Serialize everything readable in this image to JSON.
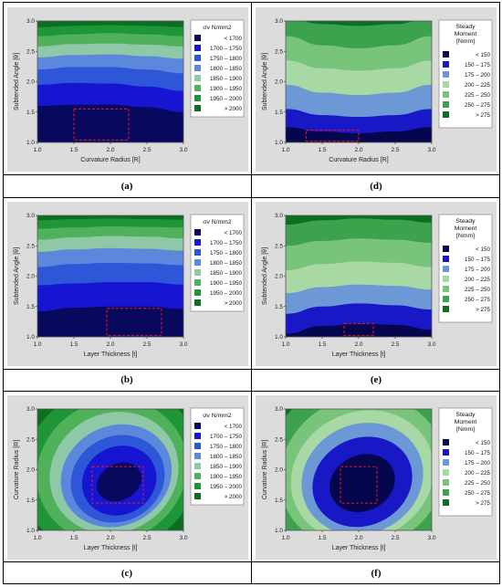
{
  "colors": {
    "stress": [
      "#08085e",
      "#1515d2",
      "#2e56d8",
      "#5b88dc",
      "#8fc8a6",
      "#4fb25a",
      "#1e9638",
      "#0b6e20"
    ],
    "moment": [
      "#06064e",
      "#1818c6",
      "#6c98d6",
      "#a8d8a4",
      "#78c47a",
      "#3ca24e",
      "#0e6e22"
    ],
    "panel_background": "#dcdcdc",
    "optimum_box": "#e8192c"
  },
  "legends": {
    "stress": {
      "title": "σv N/mm2",
      "entries": [
        "<  1700",
        "1700  –  1750",
        "1750  –  1800",
        "1800  –  1850",
        "1850  –  1900",
        "1900  –  1950",
        "1950  –  2000",
        ">  2000"
      ]
    },
    "moment": {
      "title_lines": [
        "Steady",
        "Moment",
        "[Nmm]"
      ],
      "entries": [
        "<  150",
        "150  –  175",
        "175  –  200",
        "200  –  225",
        "225  –  250",
        "250  –  275",
        ">  275"
      ]
    }
  },
  "chart_data": [
    {
      "type": "contour",
      "caption": "(a)",
      "xlabel": "Curvature Radius [R]",
      "ylabel": "Subtended Angle [θ]",
      "xlim": [
        1.0,
        3.0
      ],
      "ylim": [
        1.0,
        3.0
      ],
      "xticks": [
        "1.0",
        "1.5",
        "2.0",
        "2.5",
        "3.0"
      ],
      "yticks": [
        "1.0",
        "1.5",
        "2.0",
        "2.5",
        "3.0"
      ],
      "legend": "stress",
      "levels": [
        {
          "band": 0,
          "y_boundary": [
            1.6,
            1.62,
            1.62,
            1.58,
            1.5
          ]
        },
        {
          "band": 1,
          "y_boundary": [
            1.95,
            1.98,
            1.97,
            1.92,
            1.85
          ]
        },
        {
          "band": 2,
          "y_boundary": [
            2.2,
            2.24,
            2.24,
            2.2,
            2.14
          ]
        },
        {
          "band": 3,
          "y_boundary": [
            2.4,
            2.44,
            2.45,
            2.42,
            2.38
          ]
        },
        {
          "band": 4,
          "y_boundary": [
            2.58,
            2.62,
            2.63,
            2.61,
            2.58
          ]
        },
        {
          "band": 5,
          "y_boundary": [
            2.75,
            2.78,
            2.8,
            2.78,
            2.75
          ]
        },
        {
          "band": 6,
          "y_boundary": [
            2.9,
            2.92,
            2.93,
            2.92,
            2.9
          ]
        }
      ],
      "optimum_region": {
        "x": [
          1.5,
          2.25
        ],
        "y": [
          1.04,
          1.55
        ]
      }
    },
    {
      "type": "contour",
      "caption": "(d)",
      "xlabel": "Curvature Radius [R]",
      "ylabel": "Subtended Angle [θ]",
      "xlim": [
        1.0,
        3.0
      ],
      "ylim": [
        1.0,
        3.0
      ],
      "xticks": [
        "1.0",
        "1.5",
        "2.0",
        "2.5",
        "3.0"
      ],
      "yticks": [
        "1.0",
        "1.5",
        "2.0",
        "2.5",
        "3.0"
      ],
      "legend": "moment",
      "levels": [
        {
          "band": 0,
          "y_boundary": [
            1.25,
            1.18,
            1.15,
            1.18,
            1.25
          ]
        },
        {
          "band": 1,
          "y_boundary": [
            1.55,
            1.45,
            1.42,
            1.45,
            1.55
          ]
        },
        {
          "band": 2,
          "y_boundary": [
            1.95,
            1.82,
            1.78,
            1.82,
            1.95
          ]
        },
        {
          "band": 3,
          "y_boundary": [
            2.35,
            2.22,
            2.18,
            2.22,
            2.35
          ]
        },
        {
          "band": 4,
          "y_boundary": [
            2.75,
            2.6,
            2.55,
            2.6,
            2.75
          ]
        },
        {
          "band": 5,
          "y_boundary": [
            3.05,
            2.95,
            2.92,
            2.95,
            3.05
          ]
        }
      ],
      "optimum_region": {
        "x": [
          1.28,
          2.0
        ],
        "y": [
          1.02,
          1.2
        ]
      }
    },
    {
      "type": "contour",
      "caption": "(b)",
      "xlabel": "Layer Thickness [t]",
      "ylabel": "Subtended Angle [θ]",
      "xlim": [
        1.0,
        3.0
      ],
      "ylim": [
        1.0,
        3.0
      ],
      "xticks": [
        "1.0",
        "1.5",
        "2.0",
        "2.5",
        "3.0"
      ],
      "yticks": [
        "1.0",
        "1.5",
        "2.0",
        "2.5",
        "3.0"
      ],
      "legend": "stress",
      "levels": [
        {
          "band": 0,
          "y_boundary": [
            1.42,
            1.48,
            1.5,
            1.5,
            1.46
          ]
        },
        {
          "band": 1,
          "y_boundary": [
            1.85,
            1.88,
            1.9,
            1.9,
            1.86
          ]
        },
        {
          "band": 2,
          "y_boundary": [
            2.15,
            2.2,
            2.22,
            2.21,
            2.18
          ]
        },
        {
          "band": 3,
          "y_boundary": [
            2.4,
            2.44,
            2.46,
            2.45,
            2.42
          ]
        },
        {
          "band": 4,
          "y_boundary": [
            2.6,
            2.64,
            2.66,
            2.65,
            2.62
          ]
        },
        {
          "band": 5,
          "y_boundary": [
            2.78,
            2.8,
            2.82,
            2.81,
            2.8
          ]
        },
        {
          "band": 6,
          "y_boundary": [
            2.92,
            2.94,
            2.95,
            2.94,
            2.93
          ]
        }
      ],
      "optimum_region": {
        "x": [
          1.95,
          2.7
        ],
        "y": [
          1.02,
          1.47
        ]
      }
    },
    {
      "type": "contour",
      "caption": "(e)",
      "xlabel": "Layer Thickness [t]",
      "ylabel": "Subtended Angle [θ]",
      "xlim": [
        1.0,
        3.0
      ],
      "ylim": [
        1.0,
        3.0
      ],
      "xticks": [
        "1.0",
        "1.5",
        "2.0",
        "2.5",
        "3.0"
      ],
      "yticks": [
        "1.0",
        "1.5",
        "2.0",
        "2.5",
        "3.0"
      ],
      "legend": "moment",
      "levels": [
        {
          "band": 0,
          "y_boundary": [
            1.05,
            1.18,
            1.22,
            1.2,
            1.12
          ]
        },
        {
          "band": 1,
          "y_boundary": [
            1.38,
            1.5,
            1.55,
            1.52,
            1.45
          ]
        },
        {
          "band": 2,
          "y_boundary": [
            1.72,
            1.82,
            1.86,
            1.84,
            1.78
          ]
        },
        {
          "band": 3,
          "y_boundary": [
            2.1,
            2.2,
            2.24,
            2.22,
            2.15
          ]
        },
        {
          "band": 4,
          "y_boundary": [
            2.5,
            2.58,
            2.62,
            2.6,
            2.55
          ]
        },
        {
          "band": 5,
          "y_boundary": [
            2.85,
            2.92,
            2.95,
            2.93,
            2.88
          ]
        }
      ],
      "optimum_region": {
        "x": [
          1.8,
          2.2
        ],
        "y": [
          1.02,
          1.22
        ]
      }
    },
    {
      "type": "contour",
      "caption": "(c)",
      "xlabel": "Layer Thickness [t]",
      "ylabel": "Curvature Radius [R]",
      "xlim": [
        1.0,
        3.0
      ],
      "ylim": [
        1.0,
        3.0
      ],
      "xticks": [
        "1.0",
        "1.5",
        "2.0",
        "2.5",
        "3.0"
      ],
      "yticks": [
        "1.0",
        "1.5",
        "2.0",
        "2.5",
        "3.0"
      ],
      "legend": "stress",
      "optimum_region": {
        "x": [
          1.75,
          2.45
        ],
        "y": [
          1.45,
          2.05
        ]
      }
    },
    {
      "type": "contour",
      "caption": "(f)",
      "xlabel": "Layer Thickness [t]",
      "ylabel": "Curvature Radius [R]",
      "xlim": [
        1.0,
        3.0
      ],
      "ylim": [
        1.0,
        3.0
      ],
      "xticks": [
        "1.0",
        "1.5",
        "2.0",
        "2.5",
        "3.0"
      ],
      "yticks": [
        "1.0",
        "1.5",
        "2.0",
        "2.5",
        "3.0"
      ],
      "legend": "moment",
      "optimum_region": {
        "x": [
          1.75,
          2.25
        ],
        "y": [
          1.45,
          2.05
        ]
      }
    }
  ]
}
